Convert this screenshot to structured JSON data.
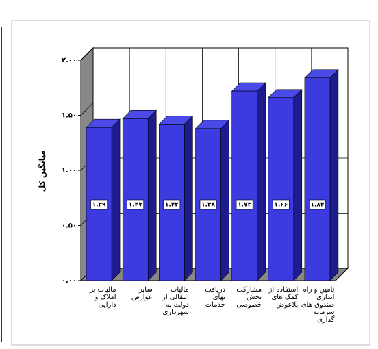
{
  "chart_data": {
    "type": "bar3d",
    "y_label": "میانگین کل",
    "categories": [
      "مالیات بر املاک و دارایی",
      "سایر عوارض",
      "مالیات انتقالی از دولت به شهرداری",
      "دریافت بهای خدمات",
      "مشارکت بخش خصوصی",
      "استفاده از کمک های بلاعوض",
      "تامین و راه اندازی صندوق های سرمایه گذاری"
    ],
    "values": [
      1.39,
      1.47,
      1.42,
      1.38,
      1.72,
      1.66,
      1.84
    ],
    "value_labels": [
      "۱.۳۹",
      "۱.۴۷",
      "۱.۴۲",
      "۱.۳۸",
      "۱.۷۲",
      "۱.۶۶",
      "۱.۸۴"
    ],
    "color": "#3b3be0",
    "ylim": [
      0,
      2
    ],
    "yticks": [
      {
        "value": 0,
        "label": "۰.۰۰"
      },
      {
        "value": 0.5,
        "label": "۰.۵۰"
      },
      {
        "value": 1,
        "label": "۱.۰۰"
      },
      {
        "value": 1.5,
        "label": "۱.۵۰"
      },
      {
        "value": 2,
        "label": "۲.۰۰"
      }
    ],
    "grid": true
  }
}
